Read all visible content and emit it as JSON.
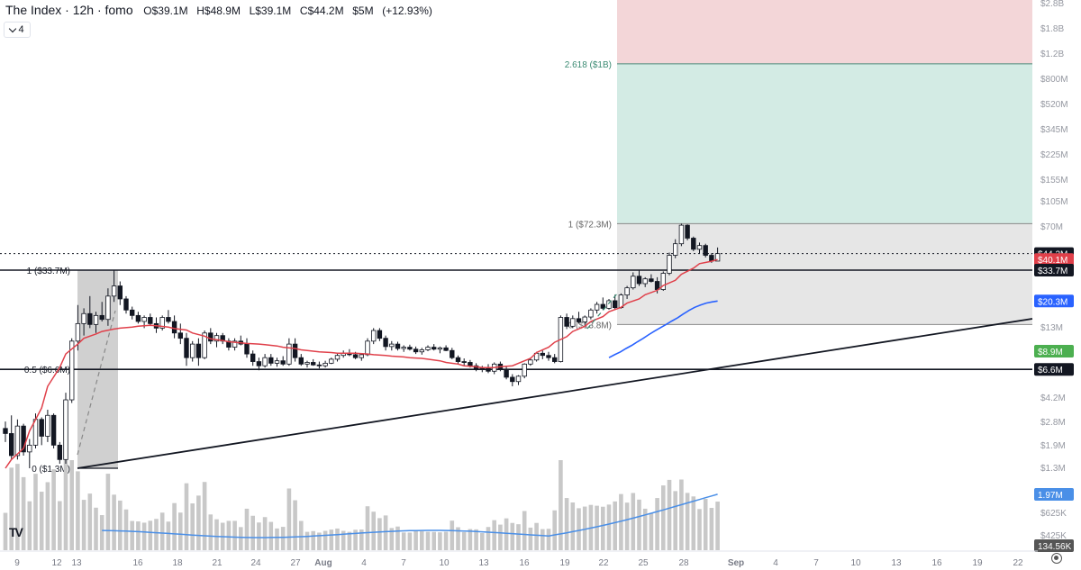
{
  "header": {
    "title": "The Index · 12h · fomo",
    "open": "O$39.1M",
    "high": "H$48.9M",
    "low": "L$39.1M",
    "close": "C$44.2M",
    "volume": "$5M",
    "change": "(+12.93%)",
    "indicator_count": "4"
  },
  "colors": {
    "up_candle": "#ffffff",
    "down_candle": "#131722",
    "ema_short": "#e0404a",
    "ema_long": "#2962ff",
    "volume_bar": "#c8c8c8",
    "volume_ma": "#4a8fe7",
    "profit_zone": "#d3ebe4",
    "loss_zone": "#f3d6d8",
    "range_box": "#e6e6e6"
  },
  "chart_data": {
    "type": "candlestick",
    "timeframe": "12h",
    "price_scale": "log",
    "x_ticks": [
      "9",
      "12",
      "13",
      "16",
      "18",
      "21",
      "24",
      "27",
      "Aug",
      "4",
      "7",
      "10",
      "13",
      "16",
      "19",
      "22",
      "25",
      "28",
      "Sep",
      "4",
      "7",
      "10",
      "13",
      "16",
      "19",
      "22"
    ],
    "y_ticks": [
      "$2.8B",
      "$1.8B",
      "$1.2B",
      "$800M",
      "$520M",
      "$345M",
      "$225M",
      "$155M",
      "$105M",
      "$70M",
      "$13M",
      "$4.2M",
      "$2.8M",
      "$1.9M",
      "$1.3M",
      "$625K",
      "$425K"
    ],
    "price_labels": [
      {
        "text": "$44.2M",
        "bg": "#131722",
        "fg": "#ffffff"
      },
      {
        "text": "$40.1M",
        "bg": "#e0404a",
        "fg": "#ffffff"
      },
      {
        "text": "$33.7M",
        "bg": "#131722",
        "fg": "#ffffff"
      },
      {
        "text": "$20.3M",
        "bg": "#2962ff",
        "fg": "#ffffff"
      },
      {
        "text": "$8.9M",
        "bg": "#4caf50",
        "fg": "#ffffff"
      },
      {
        "text": "$6.6M",
        "bg": "#131722",
        "fg": "#ffffff"
      },
      {
        "text": "1.97M",
        "bg": "#4a8fe7",
        "fg": "#ffffff"
      },
      {
        "text": "134.56K",
        "bg": "#555555",
        "fg": "#ffffff"
      }
    ],
    "fib_levels_left": [
      {
        "text": "1 ($33.7M)",
        "price": 33.7
      },
      {
        "text": "0.5 ($6.6M)",
        "price": 6.6
      },
      {
        "text": "0 ($1.3M)",
        "price": 1.3
      }
    ],
    "fib_levels_right": [
      {
        "text": "2.618 ($1B)",
        "price": 1000
      },
      {
        "text": "1 ($72.3M)",
        "price": 72.3
      },
      {
        "text": "0 ($13.8M)",
        "price": 13.8
      }
    ],
    "candles": [
      [
        2.5,
        2.8,
        2.0,
        2.3
      ],
      [
        2.3,
        3.1,
        1.5,
        1.6
      ],
      [
        1.6,
        2.9,
        1.5,
        2.6
      ],
      [
        2.6,
        2.7,
        1.6,
        1.7
      ],
      [
        1.7,
        2.1,
        1.3,
        1.9
      ],
      [
        1.9,
        3.2,
        1.8,
        2.9
      ],
      [
        2.9,
        3.0,
        1.9,
        2.2
      ],
      [
        2.2,
        3.4,
        2.0,
        3.1
      ],
      [
        3.1,
        3.2,
        1.8,
        1.9
      ],
      [
        1.9,
        2.0,
        1.4,
        1.5
      ],
      [
        1.5,
        4.5,
        1.4,
        4.0
      ],
      [
        4.0,
        11.0,
        3.8,
        10.5
      ],
      [
        10.5,
        19.0,
        9.0,
        14.0
      ],
      [
        14.0,
        18.0,
        11.5,
        16.5
      ],
      [
        16.5,
        22.0,
        13.0,
        13.8
      ],
      [
        13.8,
        17.0,
        12.0,
        16.0
      ],
      [
        16.0,
        20.0,
        14.5,
        15.0
      ],
      [
        15.0,
        25.0,
        13.5,
        22.0
      ],
      [
        22.0,
        33.7,
        20.0,
        26.0
      ],
      [
        26.0,
        28.0,
        19.0,
        21.0
      ],
      [
        21.0,
        22.0,
        16.5,
        17.5
      ],
      [
        17.5,
        18.5,
        15.0,
        16.0
      ],
      [
        16.0,
        17.0,
        14.0,
        14.5
      ],
      [
        14.5,
        16.0,
        13.0,
        15.5
      ],
      [
        15.5,
        16.5,
        13.5,
        14.0
      ],
      [
        14.0,
        15.5,
        12.0,
        13.0
      ],
      [
        13.0,
        16.0,
        12.5,
        15.5
      ],
      [
        15.5,
        17.5,
        14.0,
        14.5
      ],
      [
        14.5,
        16.0,
        11.0,
        12.0
      ],
      [
        12.0,
        14.0,
        10.0,
        11.0
      ],
      [
        11.0,
        12.0,
        7.0,
        8.0
      ],
      [
        8.0,
        10.5,
        7.5,
        10.0
      ],
      [
        10.0,
        11.0,
        7.0,
        8.0
      ],
      [
        8.0,
        12.5,
        7.8,
        12.0
      ],
      [
        12.0,
        13.0,
        10.0,
        10.5
      ],
      [
        10.5,
        12.0,
        9.5,
        11.5
      ],
      [
        11.5,
        12.0,
        10.0,
        10.5
      ],
      [
        10.5,
        11.0,
        9.0,
        9.5
      ],
      [
        9.5,
        11.0,
        9.0,
        10.5
      ],
      [
        10.5,
        11.5,
        9.8,
        10.0
      ],
      [
        10.0,
        11.0,
        8.0,
        8.5
      ],
      [
        8.5,
        9.0,
        7.0,
        7.5
      ],
      [
        7.5,
        8.0,
        6.5,
        7.0
      ],
      [
        7.0,
        8.5,
        6.8,
        8.0
      ],
      [
        8.0,
        8.5,
        7.0,
        7.3
      ],
      [
        7.3,
        8.0,
        6.9,
        7.6
      ],
      [
        7.6,
        8.2,
        7.0,
        7.2
      ],
      [
        7.2,
        11.0,
        7.0,
        10.0
      ],
      [
        10.0,
        11.0,
        7.5,
        8.0
      ],
      [
        8.0,
        8.5,
        7.0,
        7.2
      ],
      [
        7.2,
        7.6,
        6.8,
        7.4
      ],
      [
        7.4,
        7.8,
        7.0,
        7.1
      ],
      [
        7.1,
        7.5,
        6.7,
        7.0
      ],
      [
        7.0,
        7.6,
        6.8,
        7.3
      ],
      [
        7.3,
        8.0,
        7.2,
        7.8
      ],
      [
        7.8,
        8.5,
        7.5,
        8.3
      ],
      [
        8.3,
        9.0,
        8.0,
        8.6
      ],
      [
        8.6,
        9.2,
        8.2,
        8.4
      ],
      [
        8.4,
        8.8,
        7.8,
        8.0
      ],
      [
        8.0,
        8.6,
        7.6,
        8.4
      ],
      [
        8.4,
        11.0,
        8.2,
        10.5
      ],
      [
        10.5,
        13.0,
        10.0,
        12.5
      ],
      [
        12.5,
        13.0,
        10.5,
        11.0
      ],
      [
        11.0,
        11.5,
        9.0,
        9.6
      ],
      [
        9.6,
        10.5,
        9.0,
        10.0
      ],
      [
        10.0,
        10.4,
        9.0,
        9.3
      ],
      [
        9.3,
        9.8,
        8.8,
        9.5
      ],
      [
        9.5,
        9.9,
        9.0,
        9.2
      ],
      [
        9.2,
        9.6,
        8.5,
        8.8
      ],
      [
        8.8,
        9.4,
        8.4,
        9.1
      ],
      [
        9.1,
        9.8,
        8.9,
        9.5
      ],
      [
        9.5,
        10.0,
        9.0,
        9.2
      ],
      [
        9.2,
        9.6,
        8.6,
        9.4
      ],
      [
        9.4,
        9.8,
        8.9,
        9.0
      ],
      [
        9.0,
        9.4,
        7.8,
        8.0
      ],
      [
        8.0,
        8.3,
        7.2,
        7.5
      ],
      [
        7.5,
        7.9,
        7.0,
        7.4
      ],
      [
        7.4,
        7.7,
        6.8,
        7.0
      ],
      [
        7.0,
        7.3,
        6.4,
        6.7
      ],
      [
        6.7,
        7.0,
        6.3,
        6.8
      ],
      [
        6.8,
        7.2,
        6.2,
        6.4
      ],
      [
        6.4,
        7.4,
        6.1,
        7.2
      ],
      [
        7.2,
        7.5,
        6.4,
        6.6
      ],
      [
        6.6,
        6.9,
        5.6,
        5.8
      ],
      [
        5.8,
        6.1,
        5.0,
        5.4
      ],
      [
        5.4,
        6.0,
        5.1,
        5.9
      ],
      [
        5.9,
        7.3,
        5.7,
        7.2
      ],
      [
        7.2,
        8.0,
        7.0,
        7.7
      ],
      [
        7.7,
        8.8,
        7.5,
        8.6
      ],
      [
        8.6,
        9.0,
        7.8,
        8.3
      ],
      [
        8.3,
        8.8,
        7.6,
        8.0
      ],
      [
        8.0,
        8.5,
        7.3,
        7.5
      ],
      [
        7.5,
        16.0,
        7.4,
        15.5
      ],
      [
        15.5,
        16.5,
        12.8,
        13.4
      ],
      [
        13.4,
        16.0,
        13.0,
        15.2
      ],
      [
        15.2,
        17.0,
        14.0,
        14.4
      ],
      [
        14.4,
        16.0,
        13.2,
        15.6
      ],
      [
        15.6,
        18.0,
        15.0,
        17.5
      ],
      [
        17.5,
        20.0,
        16.5,
        19.2
      ],
      [
        19.2,
        21.5,
        17.5,
        18.0
      ],
      [
        18.0,
        21.0,
        17.6,
        20.4
      ],
      [
        20.4,
        22.5,
        17.8,
        18.2
      ],
      [
        18.2,
        23.0,
        17.9,
        22.4
      ],
      [
        22.4,
        26.0,
        21.0,
        25.2
      ],
      [
        25.2,
        32.5,
        24.5,
        30.5
      ],
      [
        30.5,
        33.5,
        26.0,
        27.0
      ],
      [
        27.0,
        30.0,
        25.5,
        29.2
      ],
      [
        29.2,
        31.5,
        27.5,
        28.0
      ],
      [
        28.0,
        30.0,
        23.0,
        24.5
      ],
      [
        24.5,
        33.0,
        24.0,
        32.0
      ],
      [
        32.0,
        45.0,
        31.0,
        43.0
      ],
      [
        43.0,
        56.0,
        41.0,
        52.0
      ],
      [
        52.0,
        72.3,
        50.0,
        70.5
      ],
      [
        70.5,
        71.5,
        55.0,
        57.0
      ],
      [
        57.0,
        58.5,
        46.0,
        47.5
      ],
      [
        47.5,
        53.0,
        44.5,
        50.5
      ],
      [
        50.5,
        52.0,
        41.5,
        43.0
      ],
      [
        43.0,
        44.5,
        38.0,
        39.1
      ],
      [
        39.1,
        48.9,
        39.1,
        44.2
      ]
    ],
    "ema_short": [
      1.3,
      1.5,
      1.8,
      2.4,
      3.5,
      5.0,
      6.8,
      8.5,
      10.0,
      11.0,
      11.8,
      12.3,
      12.8,
      13.0,
      13.2,
      13.4,
      13.6,
      13.5,
      13.2,
      12.9,
      12.6,
      12.0,
      11.4,
      10.9,
      10.6,
      10.4,
      10.2,
      10.1,
      10.0,
      9.9,
      9.7,
      9.5,
      9.3,
      9.1,
      8.9,
      8.8,
      8.7,
      8.6,
      8.6,
      8.6,
      8.5,
      8.4,
      8.3,
      8.2,
      8.1,
      8.0,
      7.9,
      7.8,
      7.6,
      7.4,
      7.2,
      7.0,
      6.9,
      6.8,
      6.8,
      6.9,
      7.0,
      7.3,
      7.9,
      8.7,
      9.5,
      10.3,
      11.3,
      12.3,
      13.4,
      14.5,
      15.7,
      17.0,
      18.3,
      19.6,
      21.0,
      22.5,
      24.2,
      26.2,
      28.5,
      31.5,
      34.8,
      37.5,
      39.0,
      40.1
    ],
    "ema_long": [
      8.0,
      8.4,
      8.8,
      9.3,
      9.8,
      10.4,
      11.0,
      11.7,
      12.4,
      13.1,
      13.8,
      14.6,
      15.4,
      16.4,
      17.4,
      18.3,
      19.0,
      19.6,
      20.0,
      20.3
    ],
    "volume_ma_label": "1.97M",
    "volume_last_label": "134.56K"
  }
}
